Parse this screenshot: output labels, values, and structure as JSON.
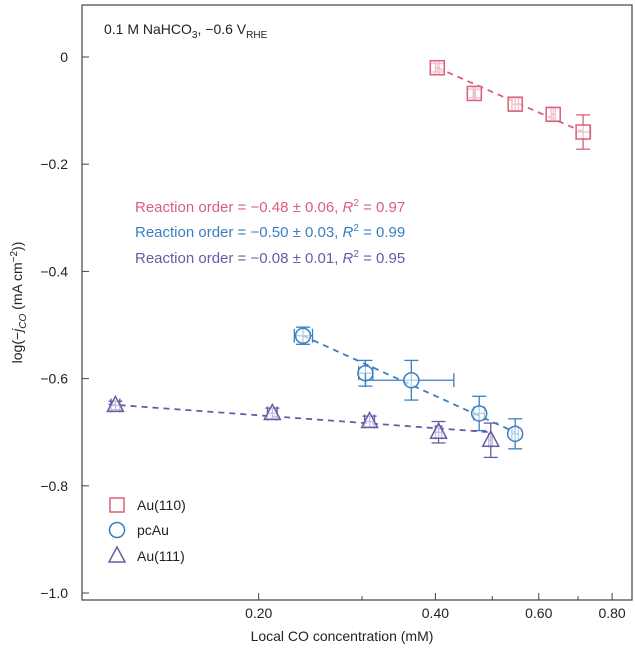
{
  "chart_data": {
    "type": "scatter",
    "annotation_top": {
      "text": "0.1 M NaHCO",
      "sub3": "3",
      "mid": ", −0.6 V",
      "subRHE": "RHE"
    },
    "xlabel": "Local CO concentration (mM)",
    "ylabel": {
      "pre": "log(−",
      "j": "j",
      "sub": "CO",
      "post": " (mA cm",
      "sup": "−2",
      "end": "))"
    },
    "xscale": "log",
    "xlim": [
      0.1,
      0.865
    ],
    "ylim": [
      -1.013,
      0.097
    ],
    "xticks": [
      {
        "v": 0.2,
        "label": "0.20"
      },
      {
        "v": 0.4,
        "label": "0.40"
      },
      {
        "v": 0.6,
        "label": "0.60"
      },
      {
        "v": 0.8,
        "label": "0.80"
      }
    ],
    "yticks": [
      {
        "v": 0,
        "label": "0"
      },
      {
        "v": -0.2,
        "label": "−0.2"
      },
      {
        "v": -0.4,
        "label": "−0.4"
      },
      {
        "v": -0.6,
        "label": "−0.6"
      },
      {
        "v": -0.8,
        "label": "−0.8"
      },
      {
        "v": -1.0,
        "label": "−1.0"
      }
    ],
    "series": [
      {
        "name": "Au(110)",
        "marker": "square",
        "color": "#d9607a",
        "x": [
          0.403,
          0.466,
          0.547,
          0.635,
          0.714
        ],
        "y": [
          -0.02,
          -0.068,
          -0.088,
          -0.107,
          -0.14
        ],
        "yerr": [
          0.008,
          0.008,
          0.012,
          0.012,
          0.032
        ],
        "xerr": [
          [
            0.4,
            0.406
          ],
          [
            0.464,
            0.468
          ],
          [
            0.54,
            0.554
          ],
          [
            0.63,
            0.64
          ],
          [
            0.695,
            0.735
          ]
        ],
        "fit": {
          "x": [
            0.403,
            0.714
          ],
          "y": [
            -0.02,
            -0.14
          ]
        },
        "label": "Reaction order = −0.48 ± 0.06, ",
        "r2": " = 0.97"
      },
      {
        "name": "pcAu",
        "marker": "circle",
        "color": "#3a7fc1",
        "x": [
          0.238,
          0.304,
          0.364,
          0.475,
          0.547
        ],
        "y": [
          -0.52,
          -0.59,
          -0.603,
          -0.665,
          -0.703
        ],
        "yerr": [
          0.016,
          0.024,
          0.037,
          0.032,
          0.028
        ],
        "xerr": [
          [
            0.23,
            0.247
          ],
          [
            0.296,
            0.313
          ],
          [
            0.304,
            0.43
          ],
          [
            0.465,
            0.485
          ],
          [
            0.54,
            0.554
          ]
        ],
        "fit": {
          "x": [
            0.238,
            0.547
          ],
          "y": [
            -0.52,
            -0.7
          ]
        },
        "label": "Reaction order = −0.50 ± 0.03, ",
        "r2": " = 0.99"
      },
      {
        "name": "Au(111)",
        "marker": "triangle",
        "color": "#6a5aa6",
        "x": [
          0.114,
          0.211,
          0.309,
          0.405,
          0.497
        ],
        "y": [
          -0.65,
          -0.665,
          -0.68,
          -0.7,
          -0.715
        ],
        "yerr": [
          0.008,
          0.01,
          0.01,
          0.02,
          0.032
        ],
        "xerr": [
          [
            0.112,
            0.116
          ],
          [
            0.207,
            0.215
          ],
          [
            0.303,
            0.315
          ],
          [
            0.4,
            0.41
          ],
          [
            0.493,
            0.5
          ]
        ],
        "fit": {
          "x": [
            0.111,
            0.497
          ],
          "y": [
            -0.648,
            -0.7
          ]
        },
        "label": "Reaction order = −0.08 ± 0.01, ",
        "r2": " = 0.95"
      }
    ]
  }
}
